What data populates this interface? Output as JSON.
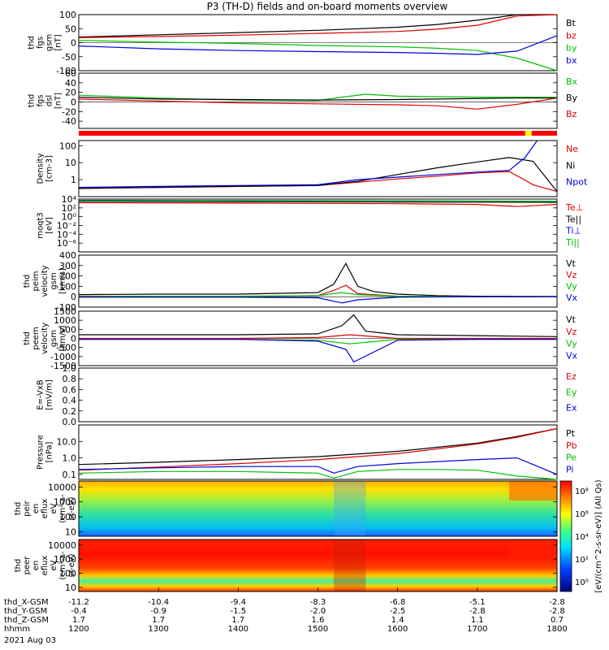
{
  "title": "P3 (TH-D) fields and on-board moments overview",
  "colors": {
    "black": "#000000",
    "red": "#e00000",
    "green": "#00c000",
    "blue": "#0000e0",
    "status_red": "#ff0000",
    "status_yellow": "#ffff00"
  },
  "chart_data": {
    "type": "line",
    "x_axis": {
      "tick_rows": [
        {
          "label": "thd_X-GSM",
          "values": [
            "-11.2",
            "-10.4",
            "-9.4",
            "-8.3",
            "-6.8",
            "-5.1",
            "-2.8"
          ]
        },
        {
          "label": "thd_Y-GSM",
          "values": [
            "-0.4",
            "-0.9",
            "-1.5",
            "-2.0",
            "-2.5",
            "-2.8",
            "-2.8"
          ]
        },
        {
          "label": "thd_Z-GSM",
          "values": [
            "1.7",
            "1.7",
            "1.7",
            "1.6",
            "1.4",
            "1.1",
            "0.7"
          ]
        },
        {
          "label": "hhmm",
          "values": [
            "1200",
            "1300",
            "1400",
            "1500",
            "1600",
            "1700",
            "1800"
          ]
        }
      ],
      "date": "2021 Aug 03",
      "hours": [
        12,
        13,
        14,
        15,
        16,
        17,
        18
      ]
    },
    "panels": [
      {
        "id": "fgs-gsm",
        "ylabel": [
          "thd",
          "fgs",
          "gsm",
          "[nT]"
        ],
        "yscale": "linear",
        "ylim": [
          -100,
          100
        ],
        "yticks": [
          "100",
          "50",
          "0",
          "-50",
          "-100"
        ],
        "series": [
          {
            "name": "Bt",
            "color": "black",
            "x": [
              12,
              13,
              14,
              15,
              16,
              16.5,
              17,
              17.5,
              18
            ],
            "y": [
              20,
              28,
              36,
              44,
              55,
              65,
              80,
              100,
              100
            ]
          },
          {
            "name": "bz",
            "color": "red",
            "x": [
              12,
              13,
              14,
              15,
              16,
              16.5,
              17,
              17.5,
              18
            ],
            "y": [
              18,
              22,
              27,
              33,
              40,
              48,
              62,
              95,
              100
            ]
          },
          {
            "name": "by",
            "color": "green",
            "x": [
              12,
              13,
              14,
              15,
              16,
              16.5,
              17,
              17.5,
              18
            ],
            "y": [
              8,
              2,
              -3,
              -10,
              -15,
              -20,
              -28,
              -55,
              -100
            ]
          },
          {
            "name": "bx",
            "color": "blue",
            "x": [
              12,
              13,
              14,
              15,
              16,
              16.5,
              17,
              17.5,
              18
            ],
            "y": [
              -12,
              -22,
              -28,
              -32,
              -35,
              -38,
              -42,
              -30,
              25
            ]
          }
        ]
      },
      {
        "id": "fgs-dsl",
        "ylabel": [
          "thd",
          "fgs",
          "dsl",
          "[nT]"
        ],
        "yscale": "linear",
        "ylim": [
          -55,
          60
        ],
        "yticks": [
          "60",
          "40",
          "20",
          "0",
          "-20",
          "-40"
        ],
        "series": [
          {
            "name": "Bx",
            "color": "green",
            "x": [
              12,
              13,
              14,
              15,
              15.3,
              15.6,
              16,
              16.5,
              17,
              17.5,
              18
            ],
            "y": [
              14,
              8,
              4,
              3,
              10,
              16,
              12,
              11,
              10,
              10,
              10
            ]
          },
          {
            "name": "By",
            "color": "black",
            "x": [
              12,
              13,
              14,
              15,
              16,
              16.5,
              17,
              17.5,
              18
            ],
            "y": [
              10,
              6,
              5,
              4,
              5,
              6,
              7,
              8,
              8
            ]
          },
          {
            "name": "Bz",
            "color": "red",
            "x": [
              12,
              13,
              14,
              15,
              16,
              16.5,
              17,
              17.5,
              18
            ],
            "y": [
              6,
              2,
              -2,
              -4,
              -6,
              -8,
              -15,
              -5,
              8
            ]
          }
        ]
      },
      {
        "id": "density",
        "ylabel": [
          "Density",
          "[cm-3]"
        ],
        "yscale": "log",
        "ylim": [
          0.1,
          200
        ],
        "yticks": [
          "100",
          "10",
          "1"
        ],
        "series": [
          {
            "name": "Ne",
            "color": "red",
            "x": [
              12,
              13,
              14,
              15,
              15.5,
              16,
              16.5,
              17,
              17.4,
              17.7,
              18
            ],
            "y": [
              0.3,
              0.35,
              0.4,
              0.45,
              0.7,
              1.1,
              1.6,
              2.5,
              3,
              0.5,
              0.2
            ]
          },
          {
            "name": "Ni",
            "color": "black",
            "x": [
              12,
              13,
              14,
              15,
              15.5,
              16,
              16.5,
              17,
              17.4,
              17.7,
              18
            ],
            "y": [
              0.3,
              0.35,
              0.4,
              0.45,
              0.8,
              2,
              5,
              11,
              20,
              12,
              0.2
            ]
          },
          {
            "name": "Npot",
            "color": "blue",
            "x": [
              12,
              13,
              14,
              15,
              15.5,
              16,
              16.5,
              17,
              17.4,
              17.6,
              17.75
            ],
            "y": [
              0.35,
              0.4,
              0.45,
              0.5,
              1.0,
              1.4,
              2,
              2.8,
              3.5,
              20,
              200
            ]
          }
        ]
      },
      {
        "id": "temperature",
        "ylabel": [
          "moqt3",
          "[eV]"
        ],
        "yscale": "log",
        "ylim": [
          1e-08,
          10000.0
        ],
        "yticks": [
          "10⁴",
          "10²",
          "10⁰",
          "10⁻²",
          "10⁻⁴",
          "10⁻⁶"
        ],
        "series": [
          {
            "name": "Te⊥",
            "color": "red",
            "x": [
              12,
              14,
              16,
              17,
              17.5,
              18
            ],
            "y": [
              1500,
              1200,
              900,
              600,
              200,
              600
            ]
          },
          {
            "name": "Te||",
            "color": "black",
            "x": [
              12,
              14,
              16,
              17,
              18
            ],
            "y": [
              3000,
              2500,
              2200,
              2000,
              1800
            ]
          },
          {
            "name": "Ti⊥",
            "color": "blue",
            "x": [
              12,
              14,
              16,
              17,
              18
            ],
            "y": [
              5000,
              4500,
              4000,
              3500,
              3000
            ]
          },
          {
            "name": "Ti||",
            "color": "green",
            "x": [
              12,
              14,
              16,
              17,
              18
            ],
            "y": [
              4000,
              3800,
              3500,
              3200,
              2800
            ]
          }
        ]
      },
      {
        "id": "peim-velocity",
        "ylabel": [
          "thd",
          "peim",
          "velocity",
          "gsm",
          "[km/s]"
        ],
        "yscale": "linear",
        "ylim": [
          -100,
          400
        ],
        "yticks": [
          "400",
          "300",
          "200",
          "100",
          "0",
          "-100"
        ],
        "series": [
          {
            "name": "Vt",
            "color": "black",
            "x": [
              12,
              13,
              14,
              15,
              15.2,
              15.35,
              15.5,
              15.7,
              16,
              16.5,
              17,
              18
            ],
            "y": [
              20,
              25,
              25,
              40,
              120,
              320,
              100,
              50,
              25,
              10,
              5,
              3
            ]
          },
          {
            "name": "Vz",
            "color": "red",
            "x": [
              12,
              13,
              14,
              15,
              15.2,
              15.35,
              15.5,
              16,
              17,
              18
            ],
            "y": [
              5,
              5,
              5,
              10,
              60,
              110,
              30,
              5,
              0,
              0
            ]
          },
          {
            "name": "Vy",
            "color": "green",
            "x": [
              12,
              13,
              14,
              15,
              15.3,
              15.5,
              16,
              17,
              18
            ],
            "y": [
              0,
              5,
              5,
              10,
              40,
              20,
              5,
              0,
              0
            ]
          },
          {
            "name": "Vx",
            "color": "blue",
            "x": [
              12,
              13,
              14,
              15,
              15.3,
              15.5,
              16,
              17,
              18
            ],
            "y": [
              -5,
              -5,
              -5,
              -10,
              -60,
              -30,
              -5,
              0,
              0
            ]
          }
        ]
      },
      {
        "id": "peem-velocity",
        "ylabel": [
          "thd",
          "peem",
          "velocity",
          "gsm",
          "[km/s]"
        ],
        "yscale": "linear",
        "ylim": [
          -1500,
          1500
        ],
        "yticks": [
          "1500",
          "1000",
          "500",
          "0",
          "-500",
          "-1000",
          "-1500"
        ],
        "series": [
          {
            "name": "Vt",
            "color": "black",
            "x": [
              12,
              13,
              14,
              15,
              15.3,
              15.45,
              15.6,
              16,
              17,
              18
            ],
            "y": [
              200,
              200,
              200,
              250,
              700,
              1300,
              400,
              200,
              150,
              100
            ]
          },
          {
            "name": "Vz",
            "color": "red",
            "x": [
              12,
              13,
              14,
              15,
              15.4,
              16,
              17,
              18
            ],
            "y": [
              0,
              0,
              0,
              50,
              200,
              0,
              0,
              0
            ]
          },
          {
            "name": "Vy",
            "color": "green",
            "x": [
              12,
              13,
              14,
              15,
              15.4,
              16,
              17,
              18
            ],
            "y": [
              -50,
              -50,
              -50,
              -100,
              -300,
              -50,
              -50,
              -50
            ]
          },
          {
            "name": "Vx",
            "color": "blue",
            "x": [
              12,
              13,
              14,
              15,
              15.35,
              15.45,
              16,
              17,
              18
            ],
            "y": [
              -50,
              -50,
              -50,
              -150,
              -600,
              -1300,
              -100,
              -50,
              -50
            ]
          }
        ]
      },
      {
        "id": "efield",
        "ylabel": [
          "E=-VxB",
          "[mV/m]"
        ],
        "yscale": "linear",
        "ylim": [
          0,
          1
        ],
        "yticks": [
          "1.0",
          "0.8",
          "0.6",
          "0.4",
          "0.2",
          "0.0"
        ],
        "legend": [
          {
            "name": "Ez",
            "color": "red"
          },
          {
            "name": "Ey",
            "color": "green"
          },
          {
            "name": "Ex",
            "color": "blue"
          }
        ],
        "series": []
      },
      {
        "id": "pressure",
        "ylabel": [
          "Pressure",
          "[nPa]"
        ],
        "yscale": "log",
        "ylim": [
          0.05,
          100
        ],
        "yticks": [
          "10.0",
          "1.0",
          "0.1"
        ],
        "series": [
          {
            "name": "Pt",
            "color": "black",
            "x": [
              12,
              13,
              14,
              15,
              16,
              17,
              17.5,
              18
            ],
            "y": [
              0.4,
              0.55,
              0.8,
              1.2,
              2.5,
              8,
              20,
              60
            ]
          },
          {
            "name": "Pb",
            "color": "red",
            "x": [
              12,
              13,
              14,
              15,
              16,
              17,
              17.5,
              18
            ],
            "y": [
              0.18,
              0.28,
              0.45,
              0.8,
              1.8,
              7,
              18,
              60
            ]
          },
          {
            "name": "Pe",
            "color": "green",
            "x": [
              12,
              13,
              14,
              15,
              15.2,
              15.5,
              16,
              16.5,
              17,
              17.5,
              18
            ],
            "y": [
              0.12,
              0.15,
              0.15,
              0.12,
              0.06,
              0.15,
              0.2,
              0.2,
              0.18,
              0.08,
              0.05
            ]
          },
          {
            "name": "Pi",
            "color": "blue",
            "x": [
              12,
              13,
              14,
              15,
              15.2,
              15.5,
              16,
              16.5,
              17,
              17.5,
              18
            ],
            "y": [
              0.2,
              0.25,
              0.3,
              0.3,
              0.12,
              0.3,
              0.45,
              0.6,
              0.8,
              1.0,
              0.1
            ]
          }
        ]
      },
      {
        "id": "peir-spectrogram",
        "type": "heatmap",
        "ylabel": [
          "thd",
          "peir",
          "en",
          "eflux",
          "eV",
          "(cm²-s-",
          "sr-eV)"
        ],
        "yscale": "log",
        "ylim": [
          5,
          25000
        ],
        "yticks": [
          "10000",
          "1000",
          "100",
          "10"
        ]
      },
      {
        "id": "peer-spectrogram",
        "type": "heatmap",
        "ylabel": [
          "thd",
          "peer",
          "en",
          "eflux",
          "eV",
          "(cm²-s-",
          "sr-eV)"
        ],
        "yscale": "log",
        "ylim": [
          5,
          25000
        ],
        "yticks": [
          "10000",
          "1000",
          "100",
          "10"
        ]
      }
    ],
    "colorbar": {
      "label": "[eV/(cm^2-s-sr-eV)] (All Qs)",
      "ticks": [
        "10⁸",
        "10⁶",
        "10⁴",
        "10²",
        "10⁰"
      ]
    }
  }
}
